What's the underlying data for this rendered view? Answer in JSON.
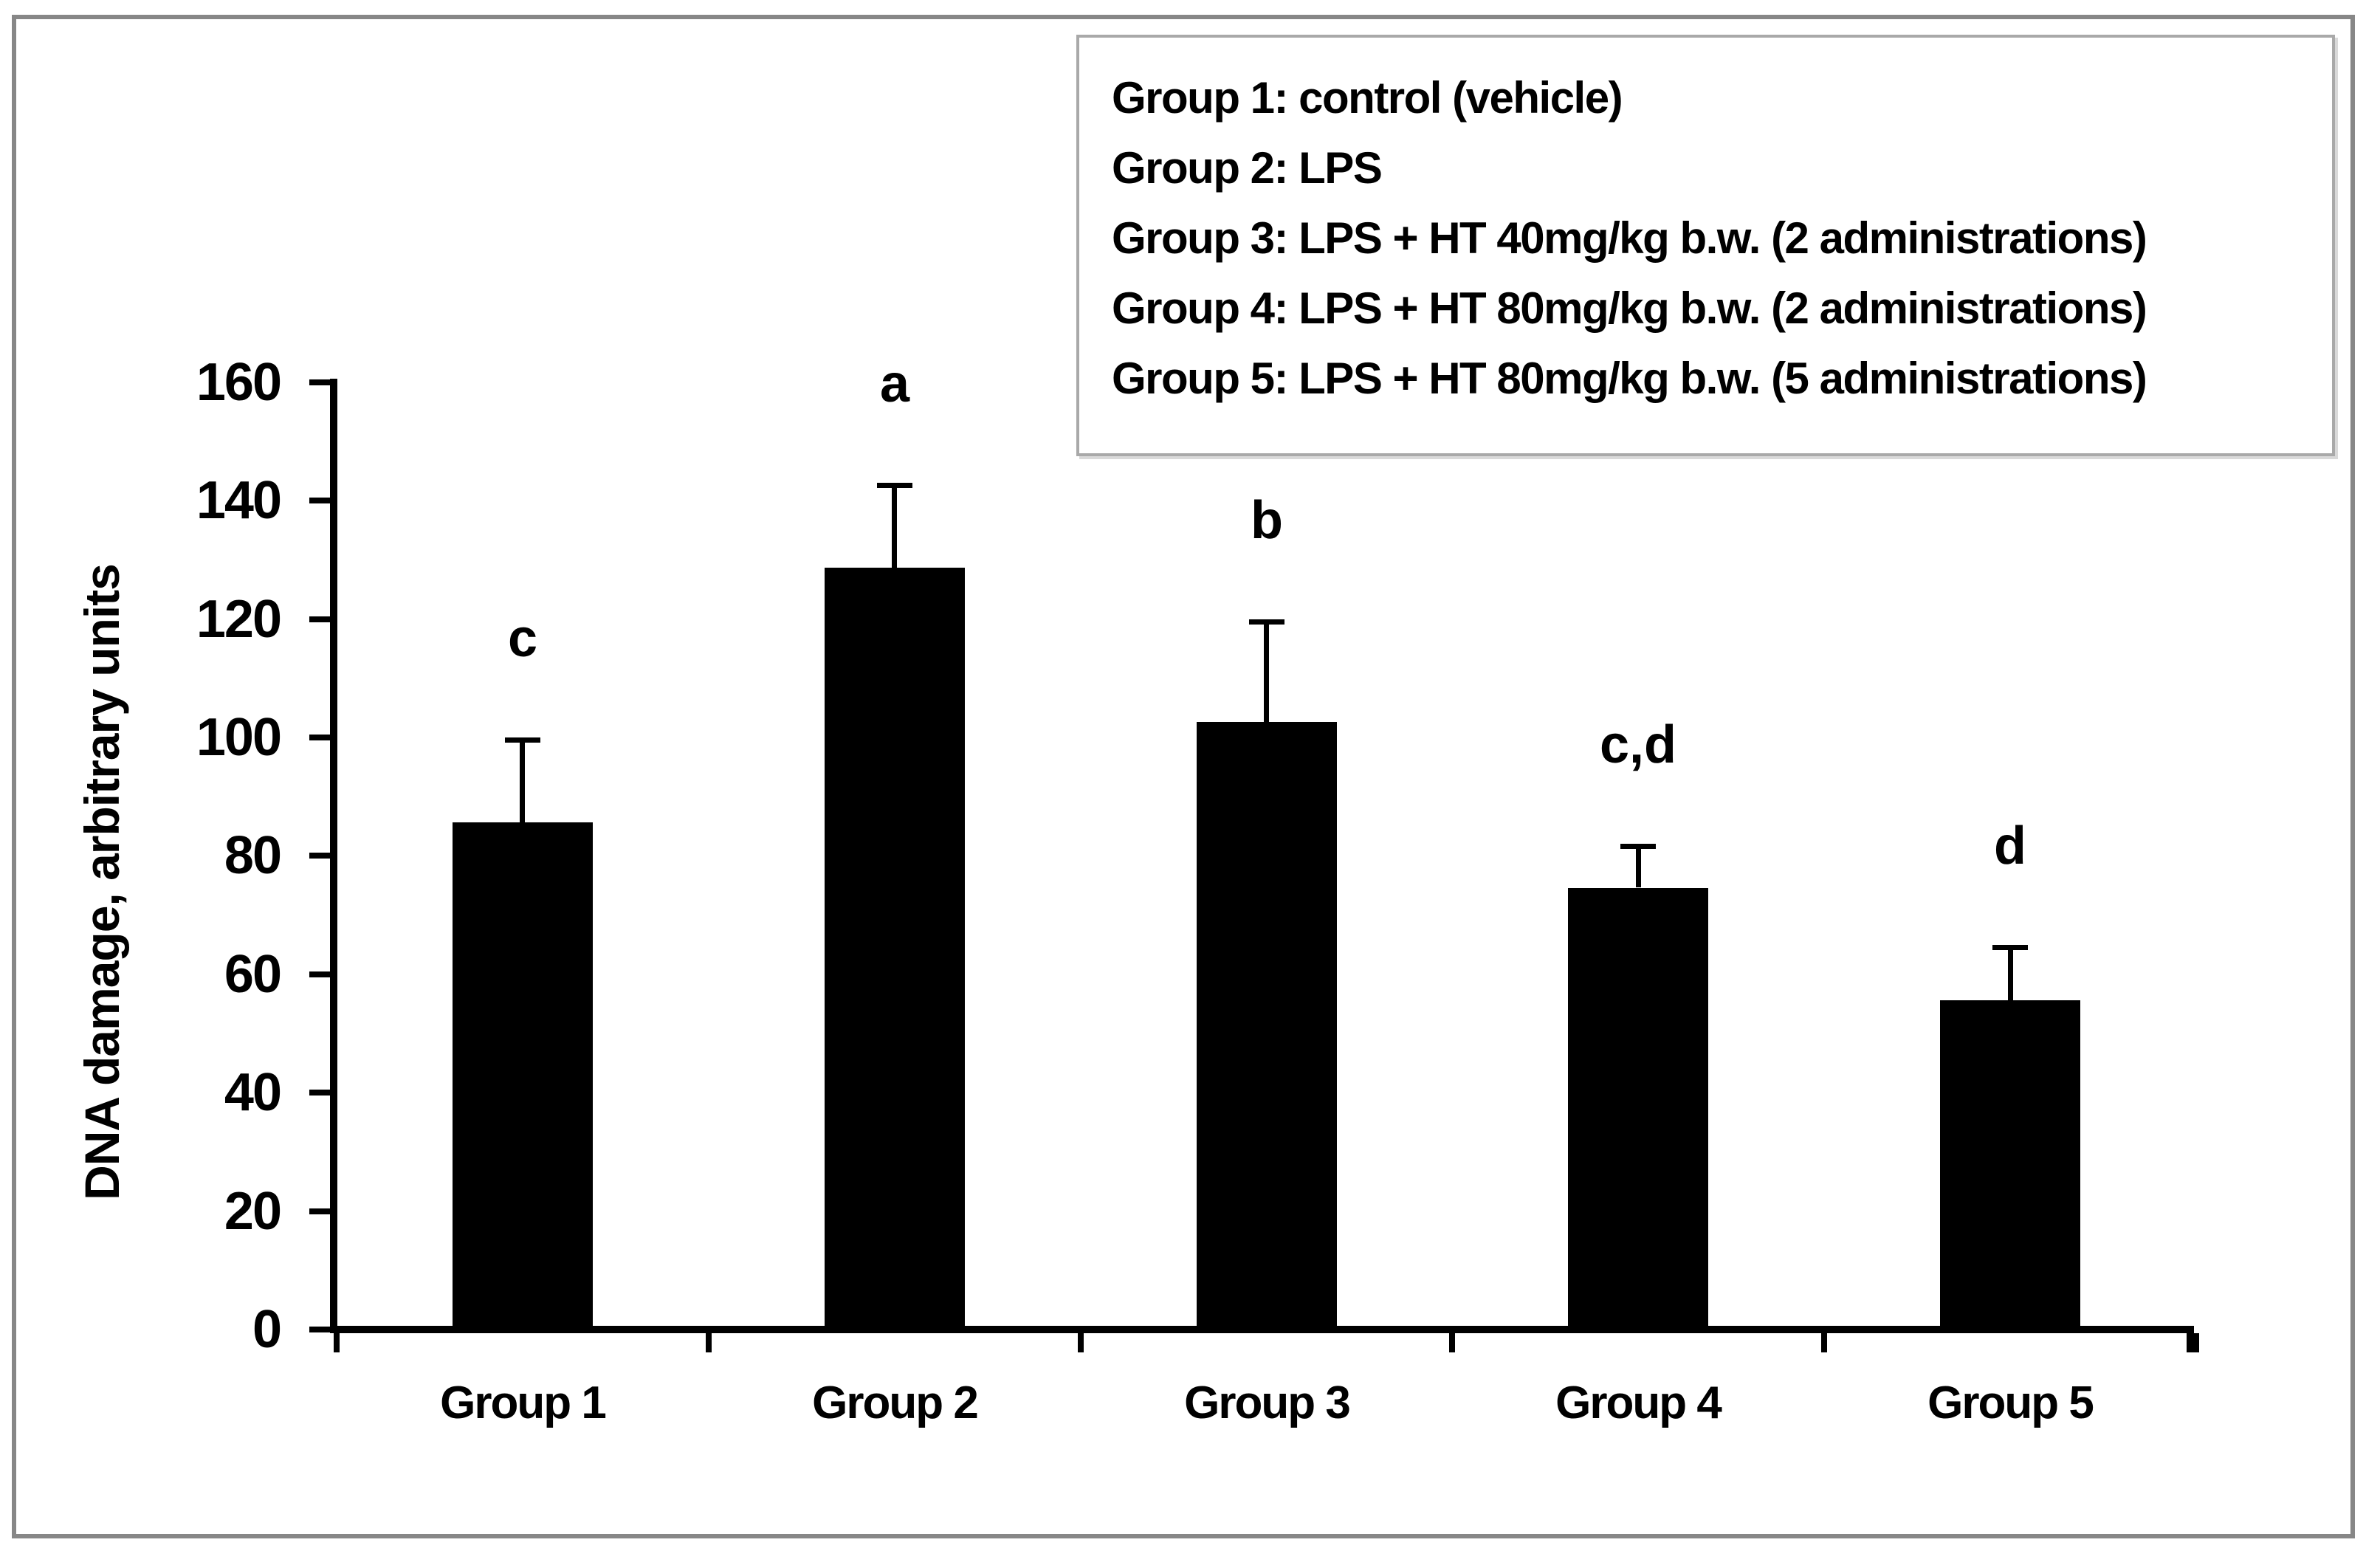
{
  "figure": {
    "background": "#ffffff",
    "frame_border_color": "#878787"
  },
  "chart_data": {
    "type": "bar",
    "title": "",
    "categories": [
      "Group 1",
      "Group 2",
      "Group 3",
      "Group 4",
      "Group 5"
    ],
    "values": [
      85,
      128,
      102,
      74,
      55
    ],
    "error_plus": [
      14,
      14,
      17,
      7,
      9
    ],
    "significance_labels": [
      "c",
      "a",
      "b",
      "c,d",
      "d"
    ],
    "bar_color": "#000000",
    "axis_color": "#000000",
    "xlabel": "",
    "ylabel": "DNA damage, arbitrary units",
    "ylim": [
      0,
      160
    ],
    "ytick_step": 20,
    "ytick_labels": [
      "0",
      "20",
      "40",
      "60",
      "80",
      "100",
      "120",
      "140",
      "160"
    ],
    "grid": false,
    "legend": {
      "position": "top-right",
      "border_color": "#a9a9a9",
      "lines": [
        "Group 1: control (vehicle)",
        "Group 2: LPS",
        "Group 3: LPS + HT 40mg/kg b.w. (2 administrations)",
        "Group 4: LPS + HT 80mg/kg b.w. (2 administrations)",
        "Group 5: LPS + HT 80mg/kg b.w. (5 administrations)"
      ]
    }
  }
}
